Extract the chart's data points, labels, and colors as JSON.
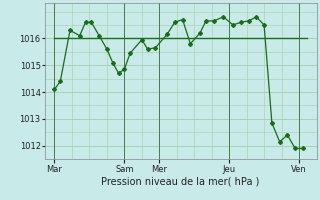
{
  "background_color": "#c8eae8",
  "grid_color": "#a8cca8",
  "line_color": "#1a6b1a",
  "xlabel": "Pression niveau de la mer( hPa )",
  "ylim": [
    1011.5,
    1017.3
  ],
  "yticks": [
    1012,
    1013,
    1014,
    1015,
    1016
  ],
  "day_labels": [
    "Mar",
    "Sam",
    "Mer",
    "Jeu",
    "Ven"
  ],
  "day_positions": [
    0,
    36,
    54,
    90,
    126
  ],
  "vline_positions": [
    0,
    36,
    54,
    90,
    126
  ],
  "line1_x": [
    0,
    3,
    8,
    13,
    16,
    19,
    23,
    27,
    30,
    33,
    36,
    39,
    45,
    48,
    52,
    58,
    62,
    66,
    70,
    75,
    78,
    82,
    87,
    92,
    96,
    100,
    104,
    108,
    112,
    116,
    120,
    124,
    128
  ],
  "line1_y": [
    1014.1,
    1014.4,
    1016.3,
    1016.1,
    1016.6,
    1016.6,
    1016.1,
    1015.6,
    1015.1,
    1014.7,
    1014.85,
    1015.45,
    1015.95,
    1015.6,
    1015.65,
    1016.15,
    1016.6,
    1016.7,
    1015.8,
    1016.2,
    1016.65,
    1016.65,
    1016.8,
    1016.5,
    1016.6,
    1016.65,
    1016.8,
    1016.5,
    1012.85,
    1012.15,
    1012.4,
    1011.9,
    1011.9
  ],
  "line2_x": [
    0,
    10,
    20,
    30,
    36,
    45,
    54,
    63,
    72,
    81,
    90,
    100,
    110,
    120,
    130
  ],
  "line2_y": [
    1016.0,
    1016.0,
    1016.0,
    1016.0,
    1016.0,
    1016.0,
    1016.0,
    1016.0,
    1016.0,
    1016.0,
    1016.0,
    1016.0,
    1016.0,
    1016.0,
    1016.0
  ]
}
